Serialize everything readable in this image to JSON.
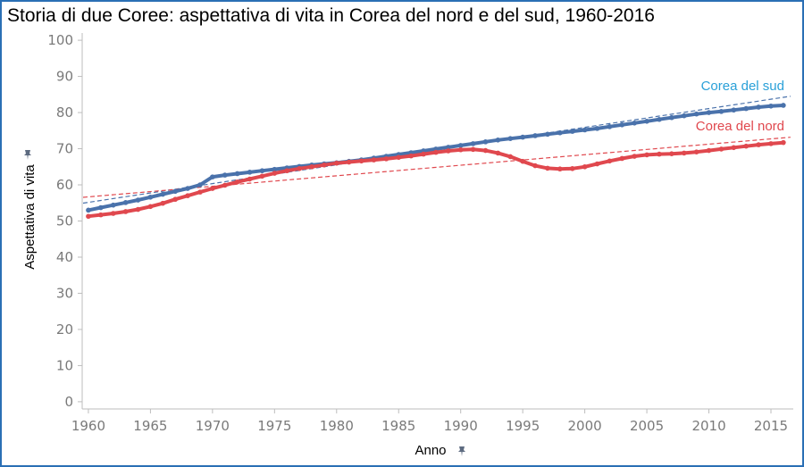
{
  "chart_data": {
    "type": "line",
    "title": "Storia di due Coree: aspettativa di vita in Corea del nord e del sud, 1960-2016",
    "xlabel": "Anno",
    "ylabel": "Aspettativa di vita",
    "x": [
      1960,
      1961,
      1962,
      1963,
      1964,
      1965,
      1966,
      1967,
      1968,
      1969,
      1970,
      1971,
      1972,
      1973,
      1974,
      1975,
      1976,
      1977,
      1978,
      1979,
      1980,
      1981,
      1982,
      1983,
      1984,
      1985,
      1986,
      1987,
      1988,
      1989,
      1990,
      1991,
      1992,
      1993,
      1994,
      1995,
      1996,
      1997,
      1998,
      1999,
      2000,
      2001,
      2002,
      2003,
      2004,
      2005,
      2006,
      2007,
      2008,
      2009,
      2010,
      2011,
      2012,
      2013,
      2014,
      2015,
      2016
    ],
    "xlim": [
      1959.5,
      2016.8
    ],
    "ylim": [
      -2,
      102
    ],
    "xticks": [
      1960,
      1965,
      1970,
      1975,
      1980,
      1985,
      1990,
      1995,
      2000,
      2005,
      2010,
      2015
    ],
    "yticks": [
      0,
      10,
      20,
      30,
      40,
      50,
      60,
      70,
      80,
      90,
      100
    ],
    "grid": false,
    "series": [
      {
        "name": "Corea del sud",
        "color": "#4a72ab",
        "values": [
          53.0,
          53.7,
          54.4,
          55.1,
          55.8,
          56.6,
          57.4,
          58.2,
          59.0,
          60.0,
          62.2,
          62.7,
          63.1,
          63.5,
          63.9,
          64.3,
          64.7,
          65.1,
          65.5,
          65.8,
          66.1,
          66.5,
          66.9,
          67.4,
          67.9,
          68.4,
          68.9,
          69.4,
          69.9,
          70.4,
          70.9,
          71.4,
          71.9,
          72.4,
          72.8,
          73.2,
          73.6,
          74.0,
          74.4,
          74.8,
          75.2,
          75.6,
          76.1,
          76.6,
          77.1,
          77.6,
          78.1,
          78.6,
          79.1,
          79.6,
          80.0,
          80.3,
          80.7,
          81.1,
          81.5,
          81.8,
          82.0
        ]
      },
      {
        "name": "Corea del nord",
        "color": "#e0484e",
        "values": [
          51.3,
          51.7,
          52.1,
          52.6,
          53.2,
          54.0,
          54.9,
          56.0,
          57.0,
          58.0,
          59.0,
          59.9,
          60.8,
          61.6,
          62.4,
          63.2,
          63.9,
          64.5,
          65.0,
          65.5,
          66.0,
          66.3,
          66.6,
          66.9,
          67.2,
          67.6,
          68.0,
          68.5,
          69.0,
          69.4,
          69.7,
          69.8,
          69.5,
          68.8,
          67.8,
          66.5,
          65.3,
          64.6,
          64.4,
          64.5,
          65.0,
          65.8,
          66.6,
          67.3,
          67.9,
          68.3,
          68.5,
          68.6,
          68.8,
          69.1,
          69.5,
          69.9,
          70.3,
          70.7,
          71.1,
          71.4,
          71.7
        ]
      }
    ],
    "trendlines": [
      {
        "series": "Corea del sud",
        "color": "#4a72ab",
        "start": [
          1960,
          55.2
        ],
        "end": [
          2016,
          84.2
        ]
      },
      {
        "series": "Corea del nord",
        "color": "#e0484e",
        "start": [
          1960,
          56.7
        ],
        "end": [
          2016,
          73.0
        ]
      }
    ],
    "labels": [
      {
        "text": "Corea del sud",
        "color": "#2aa0d8"
      },
      {
        "text": "Corea del nord",
        "color": "#e0484e"
      }
    ]
  }
}
